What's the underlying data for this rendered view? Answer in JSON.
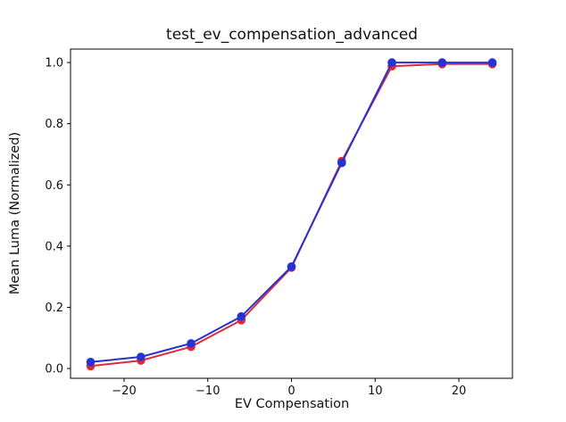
{
  "figure": {
    "title": "test_ev_compensation_advanced",
    "xlabel": "EV Compensation",
    "ylabel": "Mean Luma (Normalized)"
  },
  "chart_data": {
    "type": "line",
    "title": "test_ev_compensation_advanced",
    "xlabel": "EV Compensation",
    "ylabel": "Mean Luma (Normalized)",
    "x": [
      -24,
      -18,
      -12,
      -6,
      0,
      6,
      12,
      18,
      24
    ],
    "series": [
      {
        "name": "red",
        "color": "#e02b36",
        "marker": "circle",
        "values": [
          0.008,
          0.026,
          0.071,
          0.158,
          0.33,
          0.678,
          0.988,
          0.995,
          0.995
        ]
      },
      {
        "name": "blue",
        "color": "#2533d4",
        "marker": "circle",
        "values": [
          0.021,
          0.038,
          0.082,
          0.17,
          0.333,
          0.672,
          1.0,
          1.0,
          1.0
        ]
      }
    ],
    "xlim": [
      -26.4,
      26.4
    ],
    "ylim": [
      -0.032,
      1.044
    ],
    "xticks": {
      "values": [
        -20,
        -10,
        0,
        10,
        20
      ],
      "labels": [
        "−20",
        "−10",
        "0",
        "10",
        "20"
      ]
    },
    "yticks": {
      "values": [
        0.0,
        0.2,
        0.4,
        0.6,
        0.8,
        1.0
      ],
      "labels": [
        "0.0",
        "0.2",
        "0.4",
        "0.6",
        "0.8",
        "1.0"
      ]
    },
    "grid": false,
    "legend": null,
    "spine_color": "#000000",
    "tick_label_color": "#111111"
  }
}
